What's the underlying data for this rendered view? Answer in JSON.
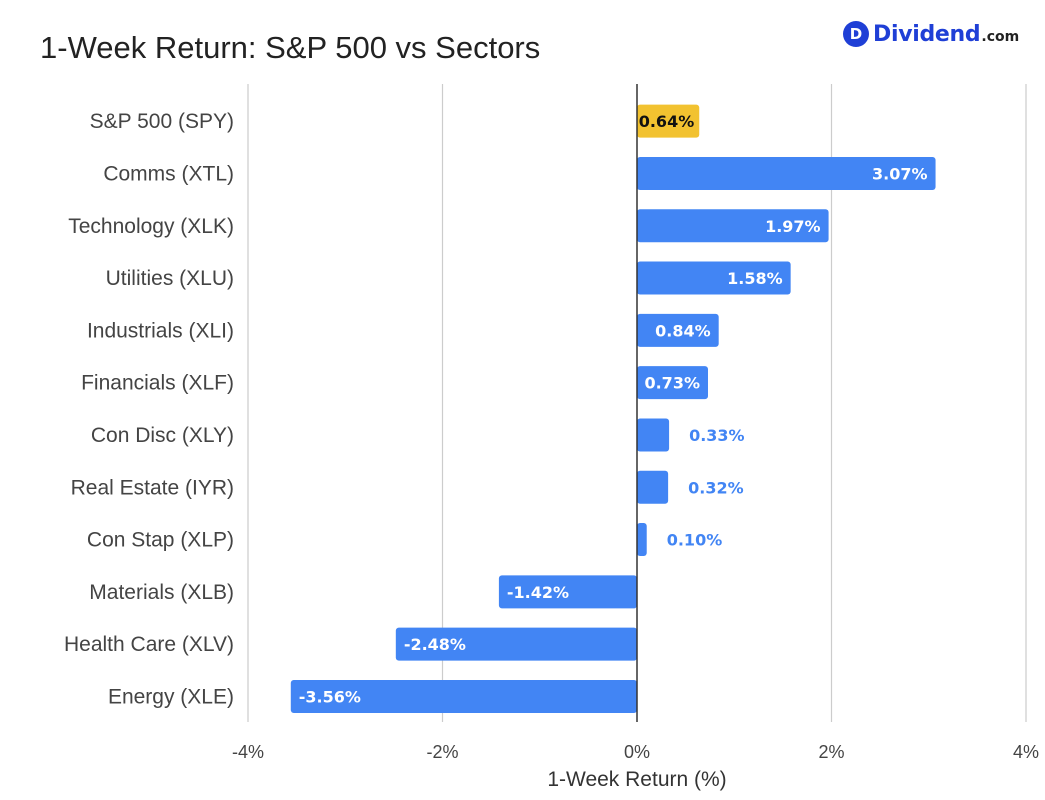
{
  "title": "1-Week Return: S&P 500 vs Sectors",
  "logo": {
    "badge": "D",
    "name": "Dividend",
    "suffix": ".com"
  },
  "chart_data": {
    "type": "bar",
    "orientation": "horizontal",
    "title": "1-Week Return: S&P 500 vs Sectors",
    "xlabel": "1-Week Return (%)",
    "ylabel": "",
    "xlim": [
      -4,
      4
    ],
    "xticks": [
      -4,
      -2,
      0,
      2,
      4
    ],
    "xtick_labels": [
      "-4%",
      "-2%",
      "0%",
      "2%",
      "4%"
    ],
    "grid": true,
    "categories": [
      "S&P 500 (SPY)",
      "Comms (XTL)",
      "Technology (XLK)",
      "Utilities (XLU)",
      "Industrials (XLI)",
      "Financials (XLF)",
      "Con Disc (XLY)",
      "Real Estate (IYR)",
      "Con Stap (XLP)",
      "Materials (XLB)",
      "Health Care (XLV)",
      "Energy (XLE)"
    ],
    "values": [
      0.64,
      3.07,
      1.97,
      1.58,
      0.84,
      0.73,
      0.33,
      0.32,
      0.1,
      -1.42,
      -2.48,
      -3.56
    ],
    "value_labels": [
      "0.64%",
      "3.07%",
      "1.97%",
      "1.58%",
      "0.84%",
      "0.73%",
      "0.33%",
      "0.32%",
      "0.10%",
      "-1.42%",
      "-2.48%",
      "-3.56%"
    ],
    "colors": {
      "highlight": "#f2c230",
      "bar": "#4285f4",
      "highlight_label": "#111111",
      "inside_label": "#ffffff",
      "outside_label": "#4285f4",
      "zero_line": "#333333",
      "grid": "#cccccc"
    },
    "highlight_index": 0
  }
}
